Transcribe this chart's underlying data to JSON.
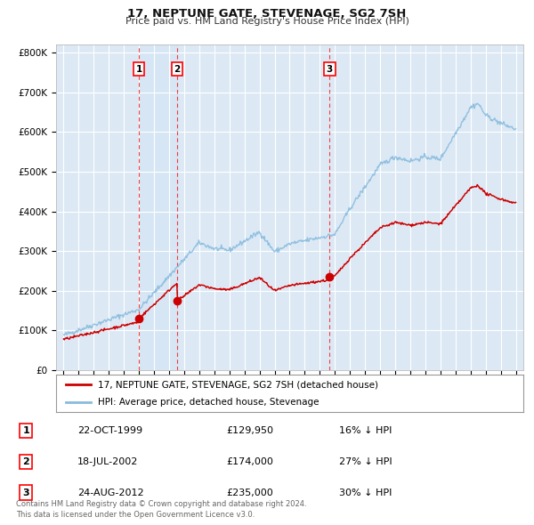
{
  "title": "17, NEPTUNE GATE, STEVENAGE, SG2 7SH",
  "subtitle": "Price paid vs. HM Land Registry's House Price Index (HPI)",
  "bg_color": "#dce9f5",
  "grid_color": "#ffffff",
  "legend_line1": "17, NEPTUNE GATE, STEVENAGE, SG2 7SH (detached house)",
  "legend_line2": "HPI: Average price, detached house, Stevenage",
  "red_color": "#cc0000",
  "blue_color": "#88bbdd",
  "transactions": [
    {
      "num": 1,
      "date": "22-OCT-1999",
      "price": 129950,
      "price_str": "£129,950",
      "pct": "16%",
      "x": 2000.0
    },
    {
      "num": 2,
      "date": "18-JUL-2002",
      "price": 174000,
      "price_str": "£174,000",
      "pct": "27%",
      "x": 2002.54
    },
    {
      "num": 3,
      "date": "24-AUG-2012",
      "price": 235000,
      "price_str": "£235,000",
      "pct": "30%",
      "x": 2012.65
    }
  ],
  "footer": "Contains HM Land Registry data © Crown copyright and database right 2024.\nThis data is licensed under the Open Government Licence v3.0.",
  "ylim": [
    0,
    820000
  ],
  "xlim": [
    1994.5,
    2025.5
  ],
  "yticks": [
    0,
    100000,
    200000,
    300000,
    400000,
    500000,
    600000,
    700000,
    800000
  ],
  "ytick_labels": [
    "£0",
    "£100K",
    "£200K",
    "£300K",
    "£400K",
    "£500K",
    "£600K",
    "£700K",
    "£800K"
  ]
}
